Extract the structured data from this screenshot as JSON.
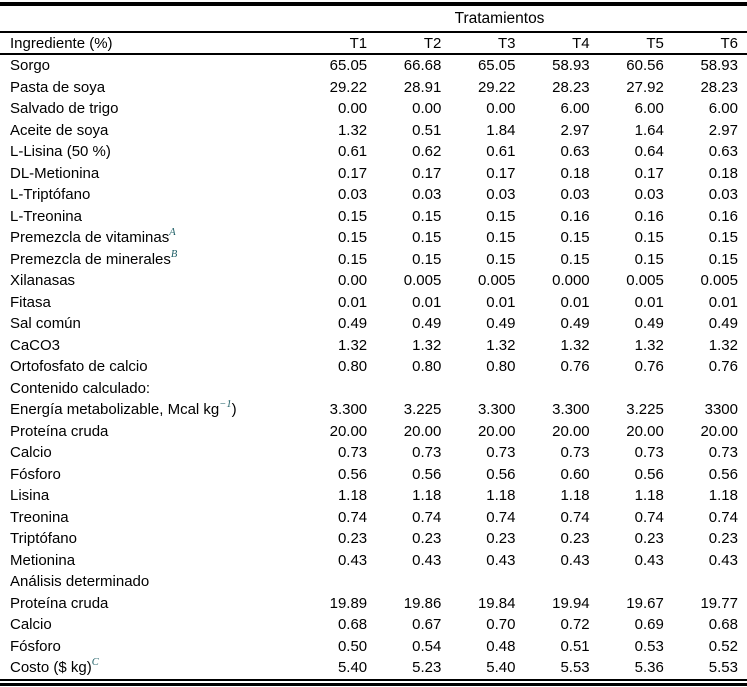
{
  "table": {
    "title": "Tratamientos",
    "ingredient_header": "Ingrediente (%)",
    "treatment_headers": [
      "T1",
      "T2",
      "T3",
      "T4",
      "T5",
      "T6"
    ],
    "rows": [
      {
        "label": "Sorgo",
        "values": [
          "65.05",
          "66.68",
          "65.05",
          "58.93",
          "60.56",
          "58.93"
        ]
      },
      {
        "label": "Pasta de soya",
        "values": [
          "29.22",
          "28.91",
          "29.22",
          "28.23",
          "27.92",
          "28.23"
        ]
      },
      {
        "label": "Salvado de trigo",
        "values": [
          "0.00",
          "0.00",
          "0.00",
          "6.00",
          "6.00",
          "6.00"
        ]
      },
      {
        "label": "Aceite de soya",
        "values": [
          "1.32",
          "0.51",
          "1.84",
          "2.97",
          "1.64",
          "2.97"
        ]
      },
      {
        "label": "L-Lisina (50 %)",
        "values": [
          "0.61",
          "0.62",
          "0.61",
          "0.63",
          "0.64",
          "0.63"
        ]
      },
      {
        "label": "DL-Metionina",
        "values": [
          "0.17",
          "0.17",
          "0.17",
          "0.18",
          "0.17",
          "0.18"
        ]
      },
      {
        "label": "L-Triptófano",
        "values": [
          "0.03",
          "0.03",
          "0.03",
          "0.03",
          "0.03",
          "0.03"
        ]
      },
      {
        "label": "L-Treonina",
        "values": [
          "0.15",
          "0.15",
          "0.15",
          "0.16",
          "0.16",
          "0.16"
        ]
      },
      {
        "label": "Premezcla de vitaminas",
        "sup": "A",
        "values": [
          "0.15",
          "0.15",
          "0.15",
          "0.15",
          "0.15",
          "0.15"
        ]
      },
      {
        "label": "Premezcla de minerales",
        "sup": "B",
        "values": [
          "0.15",
          "0.15",
          "0.15",
          "0.15",
          "0.15",
          "0.15"
        ]
      },
      {
        "label": "Xilanasas",
        "values": [
          "0.00",
          "0.005",
          "0.005",
          "0.000",
          "0.005",
          "0.005"
        ]
      },
      {
        "label": "Fitasa",
        "values": [
          "0.01",
          "0.01",
          "0.01",
          "0.01",
          "0.01",
          "0.01"
        ]
      },
      {
        "label": "Sal común",
        "values": [
          "0.49",
          "0.49",
          "0.49",
          "0.49",
          "0.49",
          "0.49"
        ]
      },
      {
        "label": "CaCO3",
        "values": [
          "1.32",
          "1.32",
          "1.32",
          "1.32",
          "1.32",
          "1.32"
        ]
      },
      {
        "label": "Ortofosfato de calcio",
        "values": [
          "0.80",
          "0.80",
          "0.80",
          "0.76",
          "0.76",
          "0.76"
        ]
      },
      {
        "label": "Contenido calculado:",
        "section": true,
        "values": []
      },
      {
        "label": "Energía metabolizable, Mcal kg",
        "sup": "−1",
        "after": ")",
        "values": [
          "3.300",
          "3.225",
          "3.300",
          "3.300",
          "3.225",
          "3300"
        ]
      },
      {
        "label": "Proteína cruda",
        "values": [
          "20.00",
          "20.00",
          "20.00",
          "20.00",
          "20.00",
          "20.00"
        ]
      },
      {
        "label": "Calcio",
        "values": [
          "0.73",
          "0.73",
          "0.73",
          "0.73",
          "0.73",
          "0.73"
        ]
      },
      {
        "label": "Fósforo",
        "values": [
          "0.56",
          "0.56",
          "0.56",
          "0.60",
          "0.56",
          "0.56"
        ]
      },
      {
        "label": "Lisina",
        "values": [
          "1.18",
          "1.18",
          "1.18",
          "1.18",
          "1.18",
          "1.18"
        ]
      },
      {
        "label": "Treonina",
        "values": [
          "0.74",
          "0.74",
          "0.74",
          "0.74",
          "0.74",
          "0.74"
        ]
      },
      {
        "label": "Triptófano",
        "values": [
          "0.23",
          "0.23",
          "0.23",
          "0.23",
          "0.23",
          "0.23"
        ]
      },
      {
        "label": "Metionina",
        "values": [
          "0.43",
          "0.43",
          "0.43",
          "0.43",
          "0.43",
          "0.43"
        ]
      },
      {
        "label": "Análisis determinado",
        "section": true,
        "values": []
      },
      {
        "label": "Proteína cruda",
        "values": [
          "19.89",
          "19.86",
          "19.84",
          "19.94",
          "19.67",
          "19.77"
        ]
      },
      {
        "label": "Calcio",
        "values": [
          "0.68",
          "0.67",
          "0.70",
          "0.72",
          "0.69",
          "0.68"
        ]
      },
      {
        "label": "Fósforo",
        "values": [
          "0.50",
          "0.54",
          "0.48",
          "0.51",
          "0.53",
          "0.52"
        ]
      },
      {
        "label": "Costo ($ kg)",
        "sup": "C",
        "values": [
          "5.40",
          "5.23",
          "5.40",
          "5.53",
          "5.36",
          "5.53"
        ]
      }
    ],
    "colors": {
      "rule": "#000000",
      "text": "#000000",
      "superscript": "#1f5f66",
      "background": "#ffffff"
    }
  }
}
